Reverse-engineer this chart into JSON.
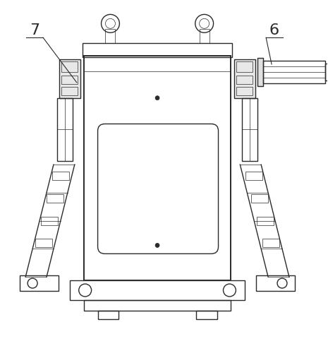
{
  "bg_color": "#ffffff",
  "lc": "#2a2a2a",
  "lc2": "#555555",
  "lw_main": 1.0,
  "lw_thin": 0.5,
  "lw_thick": 1.4,
  "label_fontsize": 16,
  "figsize": [
    4.65,
    5.07
  ],
  "dpi": 100
}
